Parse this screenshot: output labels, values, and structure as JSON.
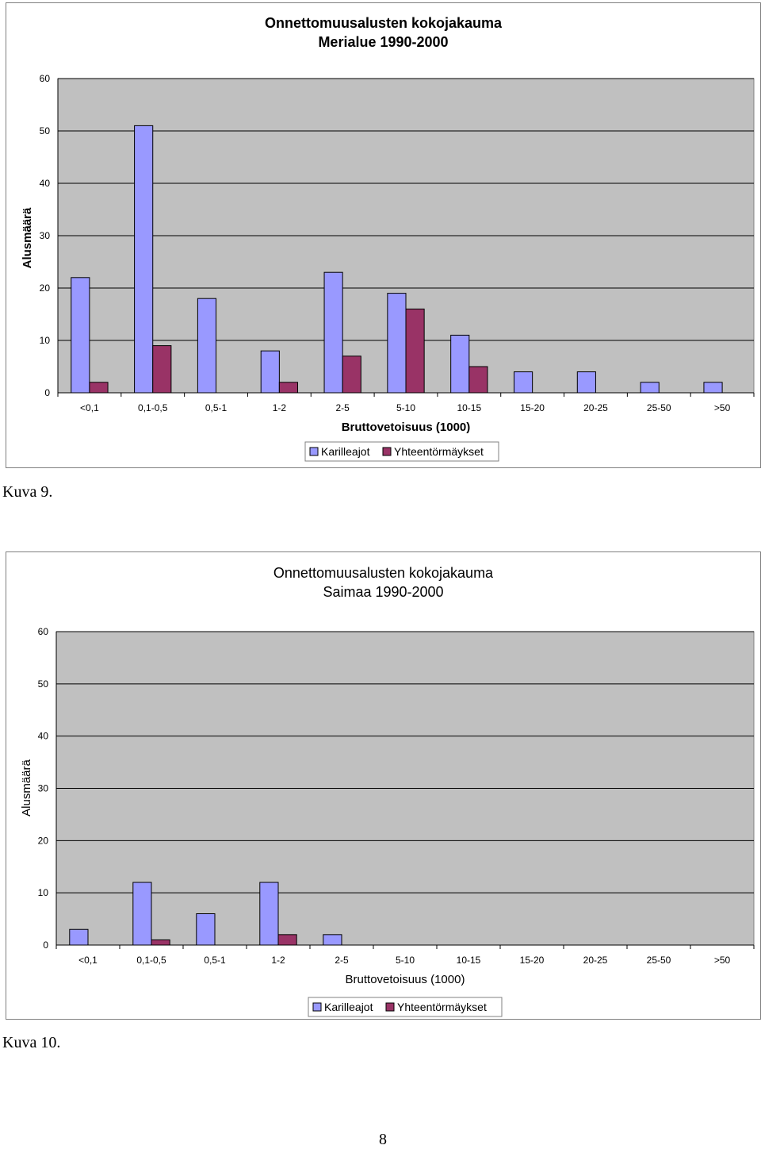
{
  "chart_data": [
    {
      "type": "bar",
      "title": "Onnettomuusalusten kokojakauma",
      "subtitle": "Merialue 1990-2000",
      "xlabel": "Bruttovetoisuus (1000)",
      "ylabel": "Alusmäärä",
      "ylim": [
        0,
        60
      ],
      "yticks": [
        "0",
        "10",
        "20",
        "30",
        "40",
        "50",
        "60"
      ],
      "categories": [
        "<0,1",
        "0,1-0,5",
        "0,5-1",
        "1-2",
        "2-5",
        "5-10",
        "10-15",
        "15-20",
        "20-25",
        "25-50",
        ">50"
      ],
      "series": [
        {
          "name": "Karilleajot",
          "color": "#9999FF",
          "values": [
            22,
            51,
            18,
            8,
            23,
            19,
            11,
            4,
            4,
            2,
            2
          ]
        },
        {
          "name": "Yhteentörmäykset",
          "color": "#993366",
          "values": [
            2,
            9,
            0,
            2,
            7,
            16,
            5,
            0,
            0,
            0,
            0
          ]
        }
      ],
      "plot_background": "#C0C0C0",
      "grid": true,
      "legend": "bottom"
    },
    {
      "type": "bar",
      "title": "Onnettomuusalusten kokojakauma",
      "subtitle": "Saimaa 1990-2000",
      "xlabel": "Bruttovetoisuus (1000)",
      "ylabel": "Alusmäärä",
      "ylim": [
        0,
        60
      ],
      "yticks": [
        "0",
        "10",
        "20",
        "30",
        "40",
        "50",
        "60"
      ],
      "categories": [
        "<0,1",
        "0,1-0,5",
        "0,5-1",
        "1-2",
        "2-5",
        "5-10",
        "10-15",
        "15-20",
        "20-25",
        "25-50",
        ">50"
      ],
      "series": [
        {
          "name": "Karilleajot",
          "color": "#9999FF",
          "values": [
            3,
            12,
            6,
            12,
            2,
            0,
            0,
            0,
            0,
            0,
            0
          ]
        },
        {
          "name": "Yhteentörmäykset",
          "color": "#993366",
          "values": [
            0,
            1,
            0,
            2,
            0,
            0,
            0,
            0,
            0,
            0,
            0
          ]
        }
      ],
      "plot_background": "#C0C0C0",
      "grid": true,
      "legend": "bottom"
    }
  ],
  "captions": [
    "Kuva 9.",
    "Kuva 10."
  ],
  "page_number": "8"
}
